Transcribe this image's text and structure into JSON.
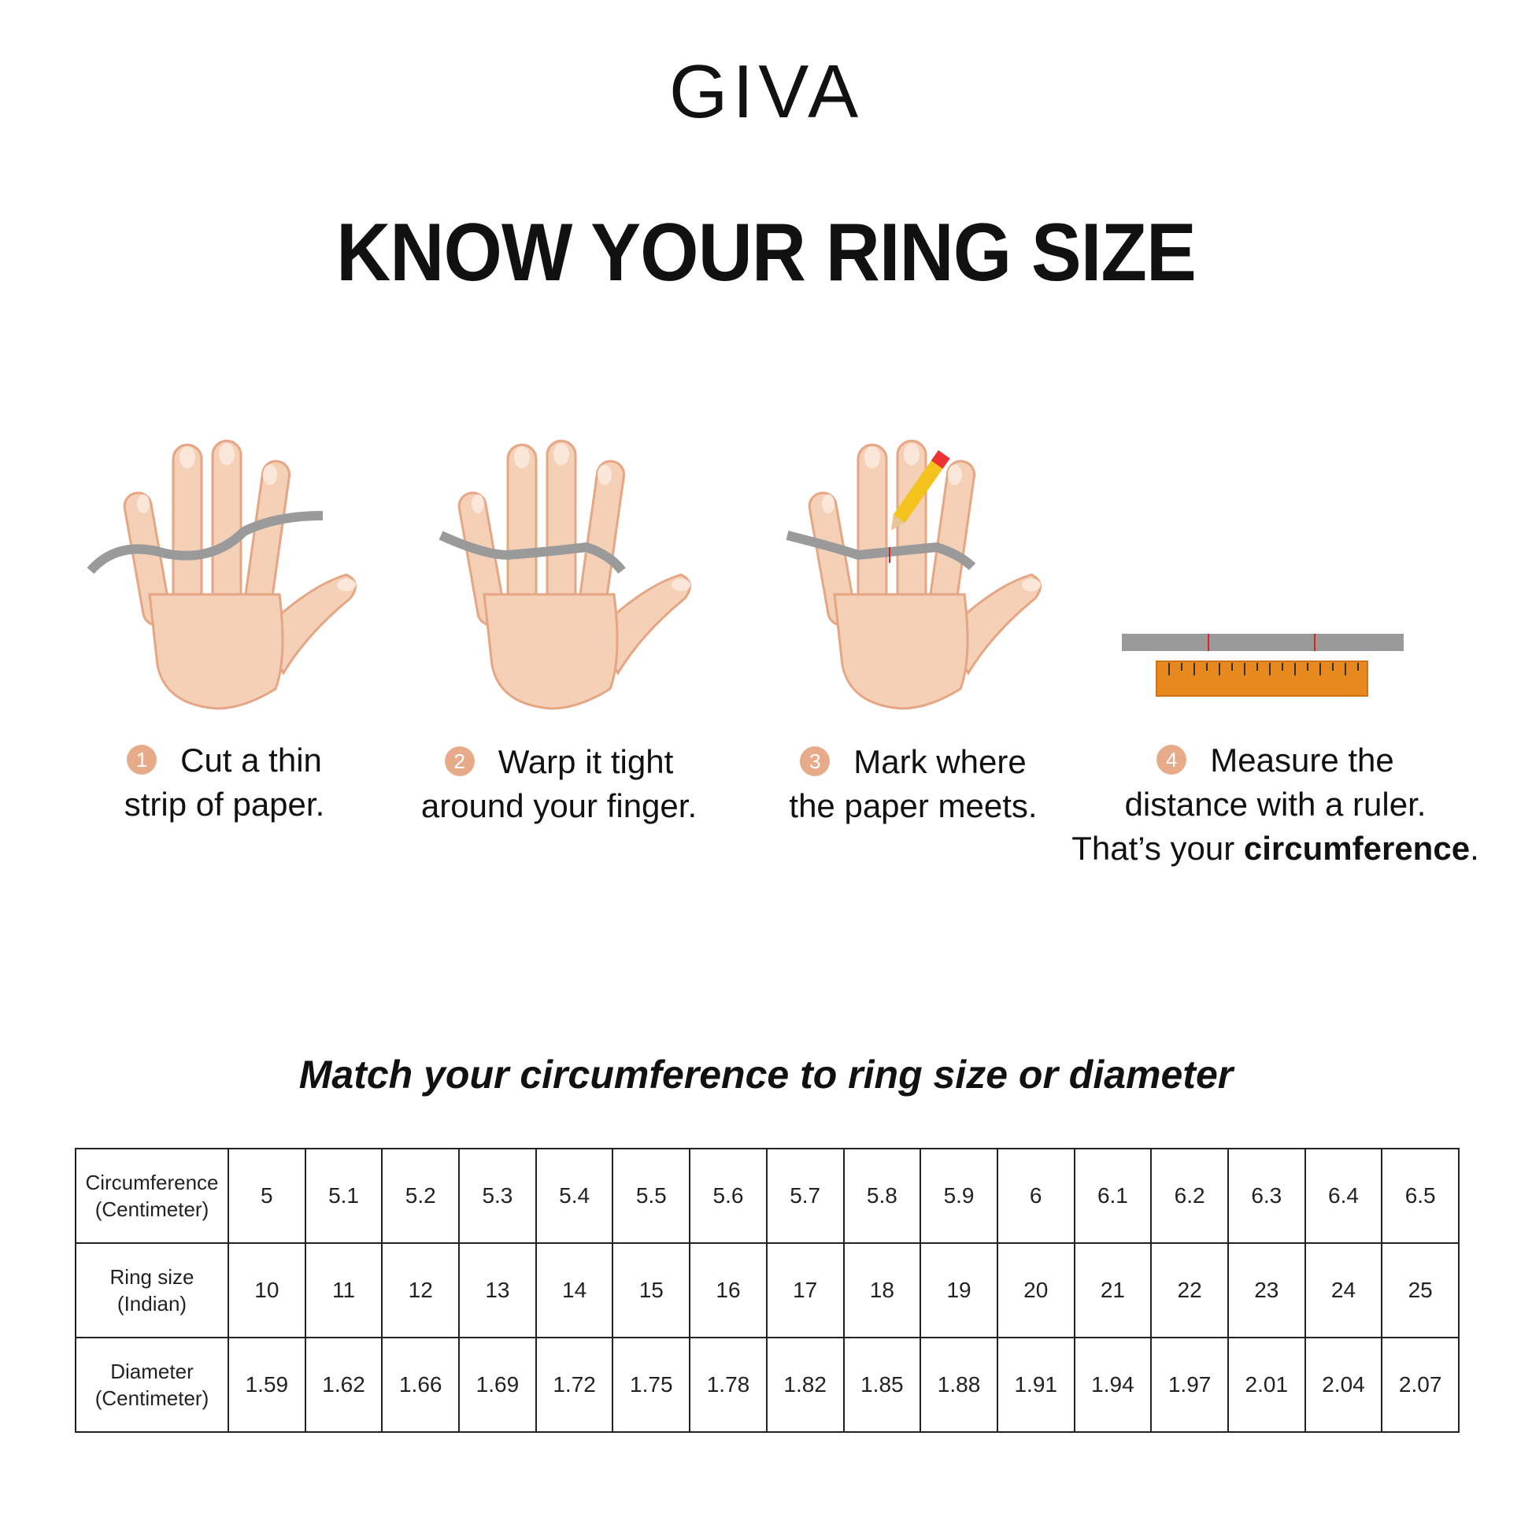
{
  "brand": "GIVA",
  "title": "KNOW YOUR RING SIZE",
  "colors": {
    "skin": "#f3d0b6",
    "skin_shadow": "#e6a583",
    "paper": "#9a9a9a",
    "ruler": "#e8891f",
    "badge": "#e8ab8a"
  },
  "steps": [
    {
      "number": "1",
      "line1": "Cut a thin",
      "line2": "strip of paper."
    },
    {
      "number": "2",
      "line1": "Warp it tight",
      "line2": "around your finger."
    },
    {
      "number": "3",
      "line1": "Mark where",
      "line2": "the paper meets."
    },
    {
      "number": "4",
      "line1": "Measure the",
      "line2": "distance with a ruler.",
      "line3_prefix": "That’s your ",
      "line3_bold": "circumference",
      "line3_suffix": "."
    }
  ],
  "subtitle": "Match your circumference to ring size or diameter",
  "table": {
    "rows": [
      {
        "label1": "Circumference",
        "label2": "(Centimeter)",
        "values": [
          "5",
          "5.1",
          "5.2",
          "5.3",
          "5.4",
          "5.5",
          "5.6",
          "5.7",
          "5.8",
          "5.9",
          "6",
          "6.1",
          "6.2",
          "6.3",
          "6.4",
          "6.5"
        ]
      },
      {
        "label1": "Ring size",
        "label2": "(Indian)",
        "values": [
          "10",
          "11",
          "12",
          "13",
          "14",
          "15",
          "16",
          "17",
          "18",
          "19",
          "20",
          "21",
          "22",
          "23",
          "24",
          "25"
        ]
      },
      {
        "label1": "Diameter",
        "label2": "(Centimeter)",
        "values": [
          "1.59",
          "1.62",
          "1.66",
          "1.69",
          "1.72",
          "1.75",
          "1.78",
          "1.82",
          "1.85",
          "1.88",
          "1.91",
          "1.94",
          "1.97",
          "2.01",
          "2.04",
          "2.07"
        ]
      }
    ]
  }
}
